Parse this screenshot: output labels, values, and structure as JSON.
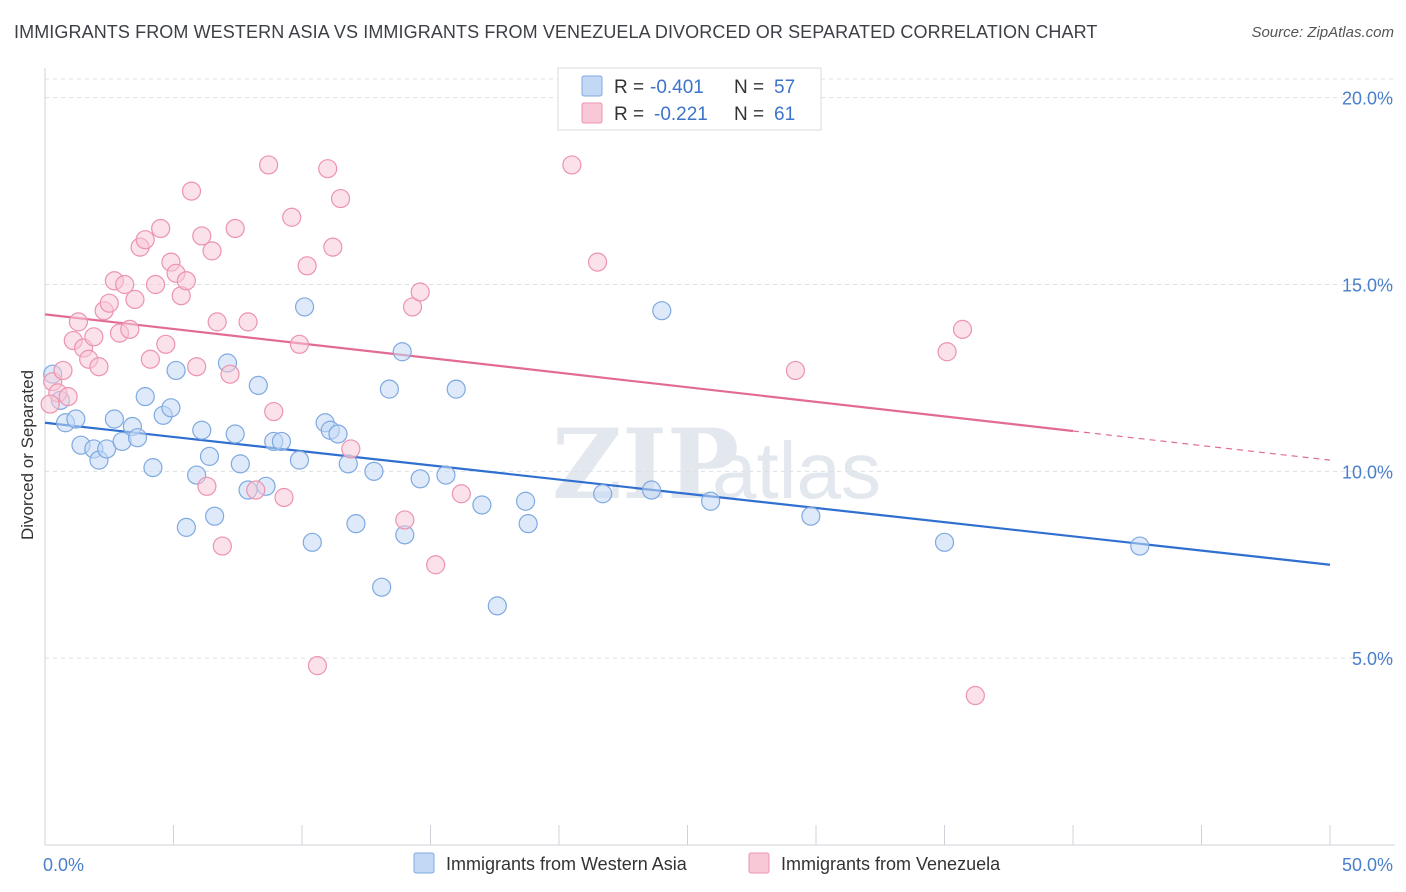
{
  "header": {
    "title": "IMMIGRANTS FROM WESTERN ASIA VS IMMIGRANTS FROM VENEZUELA DIVORCED OR SEPARATED CORRELATION CHART",
    "source": "Source: ZipAtlas.com"
  },
  "watermark": {
    "zip": "ZIP",
    "atlas": "atlas"
  },
  "legend": {
    "rows": [
      {
        "r_label": "R =",
        "r_value": "-0.401",
        "n_label": "N =",
        "n_value": "57",
        "color": "#a9c8f0"
      },
      {
        "r_label": "R =",
        "r_value": "-0.221",
        "n_label": "N =",
        "n_value": "61",
        "color": "#f5b8cb"
      }
    ]
  },
  "colors": {
    "blue_fill": "#c2d8f5",
    "blue_stroke": "#7fa9e0",
    "blue_line": "#2f6fcf",
    "pink_fill": "#f8c8d7",
    "pink_stroke": "#ec93b0",
    "pink_line": "#e26b94",
    "tick": "#4a7fcb"
  },
  "chart_data": {
    "type": "scatter",
    "title": "IMMIGRANTS FROM WESTERN ASIA VS IMMIGRANTS FROM VENEZUELA DIVORCED OR SEPARATED CORRELATION CHART",
    "xlabel": "",
    "ylabel": "Divorced or Separated",
    "xlim": [
      0,
      50
    ],
    "ylim": [
      0,
      20.5
    ],
    "x_tick_labels": [
      "0.0%",
      "50.0%"
    ],
    "y_ticks": [
      5,
      10,
      15,
      20
    ],
    "y_tick_labels": [
      "5.0%",
      "10.0%",
      "15.0%",
      "20.0%"
    ],
    "grid": true,
    "legend_position": "top-center",
    "series": [
      {
        "name": "Immigrants from Western Asia",
        "color": "#7fa9e0",
        "trend": {
          "x": [
            0,
            50
          ],
          "y": [
            11.3,
            7.5
          ],
          "dashed_from": null
        },
        "points": [
          [
            0.3,
            12.6
          ],
          [
            0.6,
            11.9
          ],
          [
            0.8,
            11.3
          ],
          [
            1.2,
            11.4
          ],
          [
            1.4,
            10.7
          ],
          [
            1.9,
            10.6
          ],
          [
            2.1,
            10.3
          ],
          [
            2.4,
            10.6
          ],
          [
            2.7,
            11.4
          ],
          [
            3.0,
            10.8
          ],
          [
            3.4,
            11.2
          ],
          [
            3.6,
            10.9
          ],
          [
            3.9,
            12.0
          ],
          [
            4.2,
            10.1
          ],
          [
            4.6,
            11.5
          ],
          [
            4.9,
            11.7
          ],
          [
            5.1,
            12.7
          ],
          [
            5.5,
            8.5
          ],
          [
            5.9,
            9.9
          ],
          [
            6.1,
            11.1
          ],
          [
            6.4,
            10.4
          ],
          [
            6.6,
            8.8
          ],
          [
            7.1,
            12.9
          ],
          [
            7.4,
            11.0
          ],
          [
            7.6,
            10.2
          ],
          [
            7.9,
            9.5
          ],
          [
            8.3,
            12.3
          ],
          [
            8.6,
            9.6
          ],
          [
            8.9,
            10.8
          ],
          [
            9.2,
            10.8
          ],
          [
            9.9,
            10.3
          ],
          [
            10.1,
            14.4
          ],
          [
            10.4,
            8.1
          ],
          [
            10.9,
            11.3
          ],
          [
            11.1,
            11.1
          ],
          [
            11.4,
            11.0
          ],
          [
            11.8,
            10.2
          ],
          [
            12.1,
            8.6
          ],
          [
            12.8,
            10.0
          ],
          [
            13.1,
            6.9
          ],
          [
            13.4,
            12.2
          ],
          [
            13.9,
            13.2
          ],
          [
            14.0,
            8.3
          ],
          [
            14.6,
            9.8
          ],
          [
            15.6,
            9.9
          ],
          [
            16.0,
            12.2
          ],
          [
            17.0,
            9.1
          ],
          [
            17.6,
            6.4
          ],
          [
            18.7,
            9.2
          ],
          [
            18.8,
            8.6
          ],
          [
            21.7,
            9.4
          ],
          [
            23.6,
            9.5
          ],
          [
            24.0,
            14.3
          ],
          [
            25.9,
            9.2
          ],
          [
            29.8,
            8.8
          ],
          [
            35.0,
            8.1
          ],
          [
            42.6,
            8.0
          ]
        ]
      },
      {
        "name": "Immigrants from Venezuela",
        "color": "#ec93b0",
        "trend": {
          "x": [
            0,
            50
          ],
          "y": [
            14.2,
            10.3
          ],
          "dashed_from": 40
        },
        "points": [
          [
            0.3,
            12.4
          ],
          [
            0.5,
            12.1
          ],
          [
            0.7,
            12.7
          ],
          [
            0.9,
            12.0
          ],
          [
            1.1,
            13.5
          ],
          [
            1.3,
            14.0
          ],
          [
            1.5,
            13.3
          ],
          [
            1.7,
            13.0
          ],
          [
            1.9,
            13.6
          ],
          [
            2.1,
            12.8
          ],
          [
            2.3,
            14.3
          ],
          [
            2.5,
            14.5
          ],
          [
            2.7,
            15.1
          ],
          [
            2.9,
            13.7
          ],
          [
            3.1,
            15.0
          ],
          [
            3.3,
            13.8
          ],
          [
            3.5,
            14.6
          ],
          [
            3.7,
            16.0
          ],
          [
            3.9,
            16.2
          ],
          [
            4.1,
            13.0
          ],
          [
            4.3,
            15.0
          ],
          [
            4.5,
            16.5
          ],
          [
            4.7,
            13.4
          ],
          [
            4.9,
            15.6
          ],
          [
            5.1,
            15.3
          ],
          [
            5.3,
            14.7
          ],
          [
            5.5,
            15.1
          ],
          [
            5.7,
            17.5
          ],
          [
            5.9,
            12.8
          ],
          [
            6.1,
            16.3
          ],
          [
            6.3,
            9.6
          ],
          [
            6.5,
            15.9
          ],
          [
            6.7,
            14.0
          ],
          [
            6.9,
            8.0
          ],
          [
            7.2,
            12.6
          ],
          [
            7.4,
            16.5
          ],
          [
            7.9,
            14.0
          ],
          [
            8.2,
            9.5
          ],
          [
            8.7,
            18.2
          ],
          [
            8.9,
            11.6
          ],
          [
            9.3,
            9.3
          ],
          [
            9.6,
            16.8
          ],
          [
            9.9,
            13.4
          ],
          [
            10.2,
            15.5
          ],
          [
            10.6,
            4.8
          ],
          [
            11.0,
            18.1
          ],
          [
            11.2,
            16.0
          ],
          [
            11.5,
            17.3
          ],
          [
            11.9,
            10.6
          ],
          [
            14.0,
            8.7
          ],
          [
            14.3,
            14.4
          ],
          [
            14.6,
            14.8
          ],
          [
            15.2,
            7.5
          ],
          [
            16.2,
            9.4
          ],
          [
            20.5,
            18.2
          ],
          [
            21.5,
            15.6
          ],
          [
            29.2,
            12.7
          ],
          [
            35.1,
            13.2
          ],
          [
            35.7,
            13.8
          ],
          [
            36.2,
            4.0
          ],
          [
            0.2,
            11.8
          ]
        ]
      }
    ]
  }
}
